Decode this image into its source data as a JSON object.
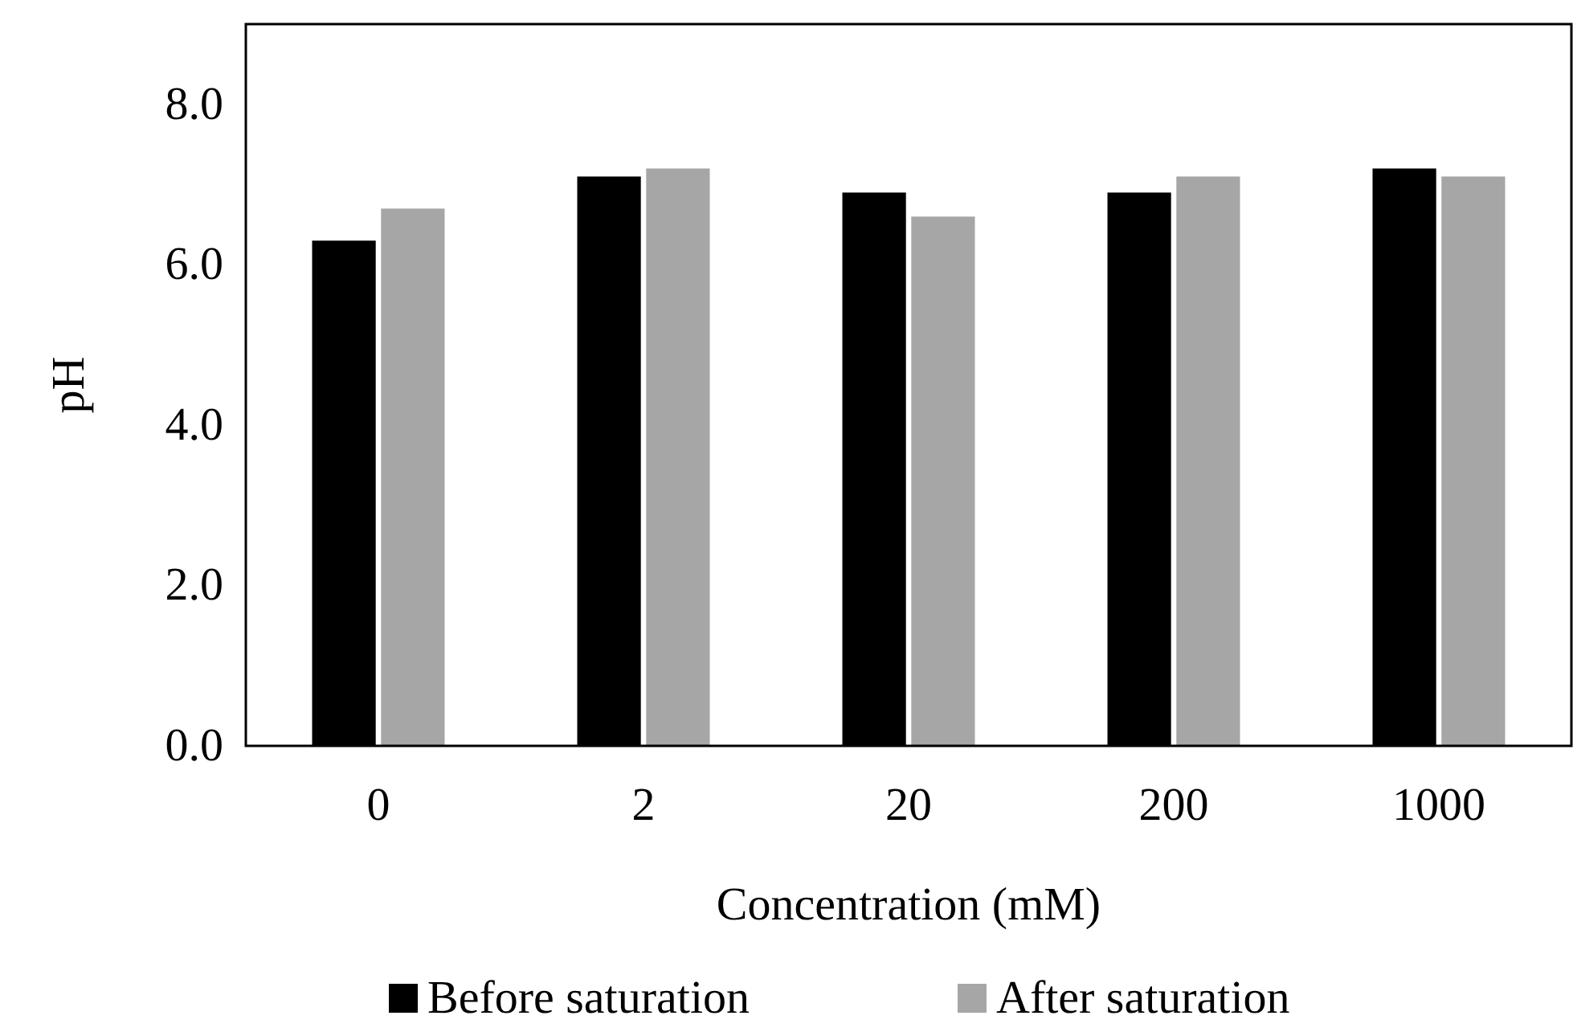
{
  "chart_data": {
    "type": "bar",
    "xlabel": "Concentration (mM)",
    "ylabel": "pH",
    "categories": [
      "0",
      "2",
      "20",
      "200",
      "1000"
    ],
    "series": [
      {
        "name": "Before saturation",
        "color": "#000000",
        "values": [
          6.3,
          7.1,
          6.9,
          6.9,
          7.2
        ]
      },
      {
        "name": "After saturation",
        "color": "#a6a6a6",
        "values": [
          6.7,
          7.2,
          6.6,
          7.1,
          7.1
        ]
      }
    ],
    "ylim": [
      0,
      9
    ],
    "yticks": [
      {
        "value": 0,
        "label": "0.0"
      },
      {
        "value": 2,
        "label": "2.0"
      },
      {
        "value": 4,
        "label": "4.0"
      },
      {
        "value": 6,
        "label": "6.0"
      },
      {
        "value": 8,
        "label": "8.0"
      }
    ],
    "grid": false,
    "legend": "bottom"
  }
}
